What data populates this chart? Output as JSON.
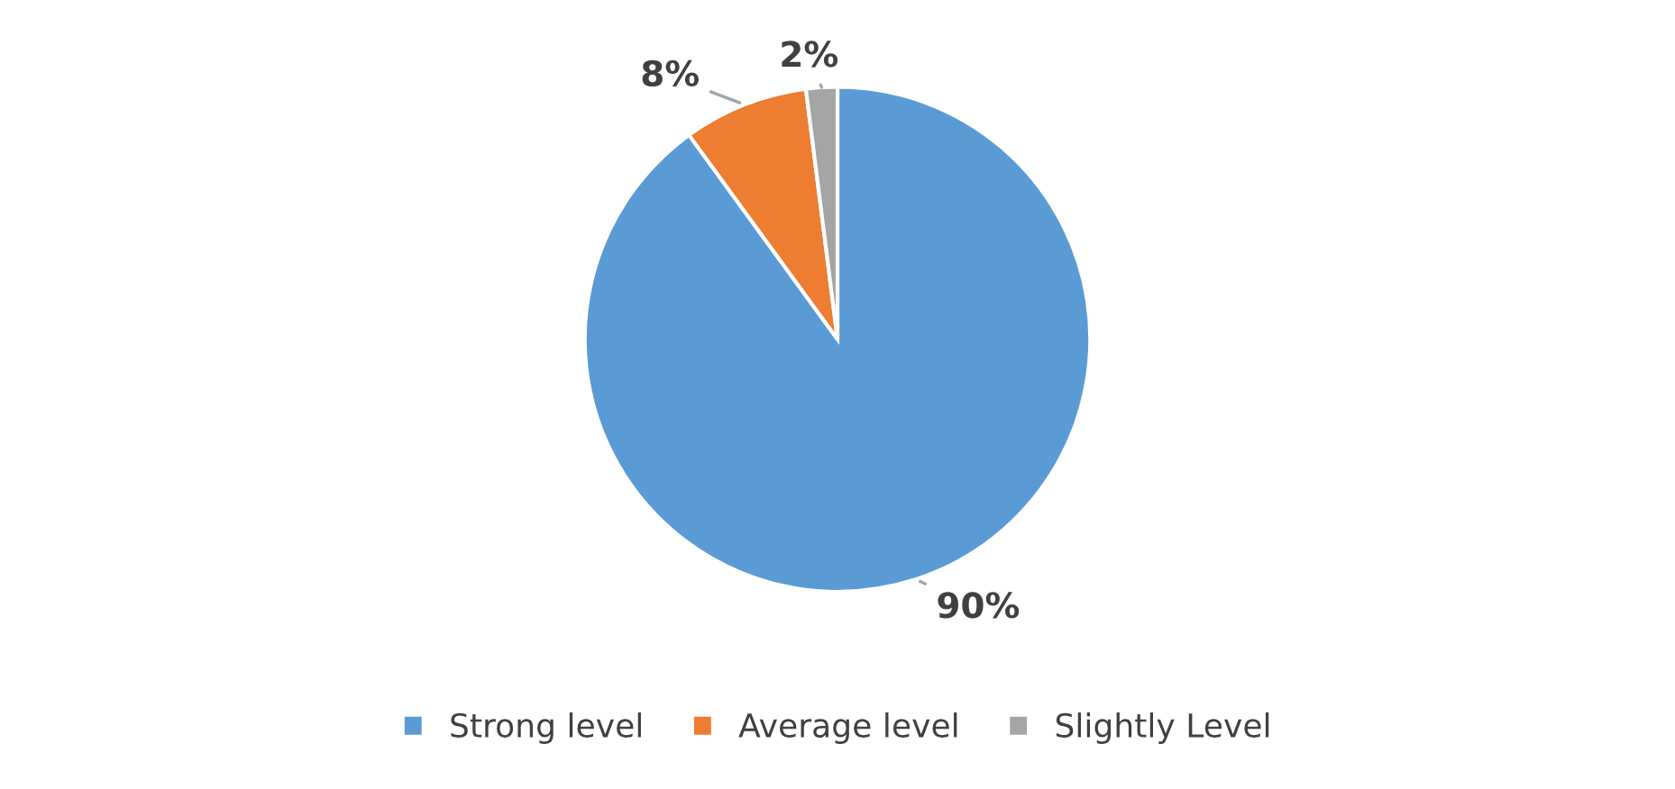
{
  "chart_data": {
    "type": "pie",
    "categories": [
      "Strong level",
      "Average level",
      "Slightly Level"
    ],
    "values": [
      90,
      8,
      2
    ],
    "colors": [
      "#5b9bd5",
      "#ed7d31",
      "#a5a5a5"
    ],
    "value_labels": [
      "90%",
      "8%",
      "2%"
    ],
    "legend": "bottom"
  }
}
